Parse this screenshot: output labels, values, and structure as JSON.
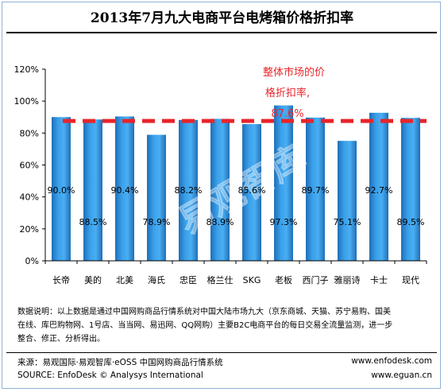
{
  "title": "2013年7月九大电商平台电烤箱价格折扣率",
  "chart_data": {
    "type": "bar",
    "categories": [
      "长帝",
      "美的",
      "北美",
      "海氏",
      "忠臣",
      "格兰仕",
      "SKG",
      "老板",
      "西门子",
      "雅丽诗",
      "卡士",
      "现代"
    ],
    "values": [
      90.0,
      88.5,
      90.4,
      78.9,
      88.2,
      88.9,
      85.6,
      97.3,
      89.7,
      75.1,
      92.7,
      89.5
    ],
    "value_labels": [
      "90.0%",
      "88.5%",
      "90.4%",
      "78.9%",
      "88.2%",
      "88.9%",
      "85.6%",
      "97.3%",
      "89.7%",
      "75.1%",
      "92.7%",
      "89.5%"
    ],
    "ylim": [
      0,
      120
    ],
    "yticks": [
      0,
      20,
      40,
      60,
      80,
      100,
      120
    ],
    "ytick_labels": [
      "0%",
      "20%",
      "40%",
      "60%",
      "80%",
      "100%",
      "120%"
    ],
    "reference_line": {
      "value": 87.6,
      "label_line1": "整体市场的价",
      "label_line2": "格折扣率,",
      "label_value": "87.6%",
      "color": "#e8242a"
    },
    "bar_color": "#2a8ad4",
    "watermark": "易观智库",
    "grid": false
  },
  "notes": {
    "line1": "数据说明：以上数据是通过中国网购商品行情系统对中国大陆市场九大（京东商城、天猫、苏宁易购、国美",
    "line2": "在线、库巴购物网、1号店、当当网、易迅网、QQ网购）主要B2C电商平台的每日交易全流量监测，进一步",
    "line3": "整合、修正、分析得出。"
  },
  "footer": {
    "source_cn": "来源：易观国际·易观智库·eOSS 中国网购商品行情系统",
    "site1": "www.enfodesk.com",
    "source_en": "SOURCE: EnfoDesk © Analysys International",
    "site2": "www.eguan.cn"
  }
}
